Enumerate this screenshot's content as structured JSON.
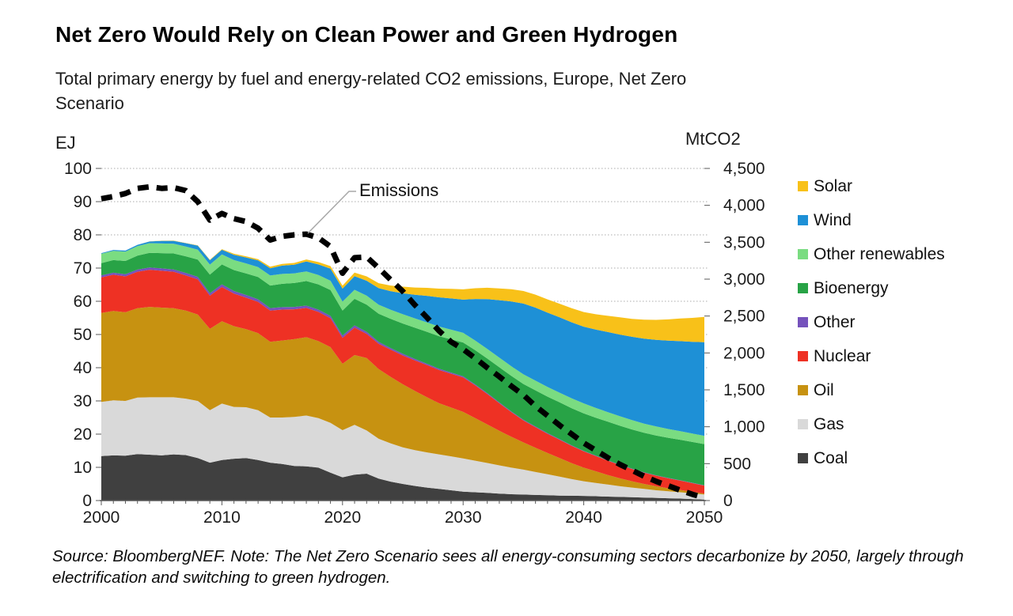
{
  "header": {
    "title": "Net Zero Would Rely on Clean Power and Green Hydrogen",
    "subtitle": "Total primary energy by fuel and energy-related CO2 emissions, Europe, Net Zero Scenario"
  },
  "footer": {
    "source_note": "Source: BloombergNEF. Note: The Net Zero Scenario sees all energy-consuming sectors decarbonize by 2050, largely through electrification and switching to green hydrogen."
  },
  "chart_data": {
    "type": "area",
    "stacked": true,
    "grid": "horizontal-dotted",
    "x_axis": {
      "min": 2000,
      "max": 2050,
      "tick_labels": [
        "2000",
        "2010",
        "2020",
        "2030",
        "2040",
        "2050"
      ],
      "minor_tick_interval": 1
    },
    "y_left": {
      "label": "EJ",
      "min": 0,
      "max": 100,
      "interval": 10,
      "tick_labels": [
        "0",
        "10",
        "20",
        "30",
        "40",
        "50",
        "60",
        "70",
        "80",
        "90",
        "100"
      ]
    },
    "y_right": {
      "label": "MtCO2",
      "min": 0,
      "max": 4500,
      "interval": 500,
      "tick_labels": [
        "0",
        "500",
        "1,000",
        "1,500",
        "2,000",
        "2,500",
        "3,000",
        "3,500",
        "4,000",
        "4,500"
      ]
    },
    "series": [
      {
        "name": "Coal",
        "color": "#404040",
        "values": [
          13.4,
          13.6,
          13.5,
          14.0,
          13.8,
          13.6,
          13.9,
          13.7,
          12.8,
          11.4,
          12.2,
          12.6,
          12.8,
          12.2,
          11.4,
          11.0,
          10.4,
          10.3,
          9.9,
          8.4,
          7.0,
          7.8,
          8.1,
          6.6,
          5.7,
          5.0,
          4.4,
          3.9,
          3.5,
          3.1,
          2.7,
          2.5,
          2.3,
          2.1,
          1.9,
          1.8,
          1.7,
          1.6,
          1.5,
          1.45,
          1.4,
          1.3,
          1.2,
          1.1,
          1.0,
          0.9,
          0.8,
          0.7,
          0.6,
          0.45,
          0.3
        ]
      },
      {
        "name": "Gas",
        "color": "#D9D9D9",
        "values": [
          16.3,
          16.6,
          16.5,
          17.0,
          17.3,
          17.5,
          17.2,
          17.0,
          17.2,
          15.8,
          17.0,
          15.6,
          15.3,
          15.0,
          13.6,
          14.0,
          14.8,
          15.3,
          14.9,
          15.0,
          14.2,
          15.0,
          13.0,
          12.0,
          11.5,
          11.0,
          10.8,
          10.6,
          10.4,
          10.2,
          10.0,
          9.5,
          9.0,
          8.5,
          8.0,
          7.5,
          6.9,
          6.3,
          5.7,
          5.0,
          4.4,
          4.0,
          3.6,
          3.2,
          2.9,
          2.6,
          2.3,
          2.1,
          1.9,
          1.7,
          1.5
        ]
      },
      {
        "name": "Oil",
        "color": "#C79211",
        "values": [
          26.8,
          26.9,
          26.7,
          26.9,
          27.2,
          27.0,
          26.8,
          26.5,
          26.0,
          24.5,
          24.8,
          24.3,
          23.5,
          23.2,
          22.8,
          23.2,
          23.4,
          23.6,
          23.2,
          22.8,
          20.0,
          21.0,
          21.8,
          21.0,
          20.0,
          19.0,
          17.8,
          16.6,
          15.4,
          14.7,
          14.0,
          12.8,
          11.6,
          10.4,
          9.3,
          8.2,
          7.3,
          6.4,
          5.6,
          4.8,
          4.1,
          3.5,
          2.9,
          2.4,
          1.9,
          1.5,
          1.2,
          0.9,
          0.7,
          0.5,
          0.3
        ]
      },
      {
        "name": "Nuclear",
        "color": "#EE3124",
        "values": [
          10.7,
          10.9,
          10.8,
          11.0,
          11.2,
          11.1,
          11.0,
          10.6,
          10.6,
          10.0,
          10.3,
          9.8,
          9.5,
          9.4,
          9.4,
          9.3,
          9.0,
          8.8,
          8.8,
          8.7,
          7.8,
          8.3,
          7.3,
          7.6,
          8.2,
          8.7,
          9.2,
          9.7,
          10.0,
          10.2,
          10.4,
          9.9,
          9.2,
          8.3,
          7.4,
          6.6,
          6.2,
          5.8,
          5.5,
          5.2,
          4.9,
          4.6,
          4.3,
          4.0,
          3.7,
          3.4,
          3.2,
          3.0,
          2.8,
          2.6,
          2.4
        ]
      },
      {
        "name": "Other",
        "color": "#7552BC",
        "values": [
          0.6,
          0.6,
          0.65,
          0.65,
          0.7,
          0.7,
          0.7,
          0.75,
          0.75,
          0.75,
          0.8,
          0.8,
          0.8,
          0.8,
          0.75,
          0.75,
          0.7,
          0.7,
          0.7,
          0.7,
          0.7,
          0.65,
          0.6,
          0.55,
          0.5,
          0.5,
          0.45,
          0.4,
          0.4,
          0.35,
          0.3,
          0.28,
          0.26,
          0.24,
          0.22,
          0.2,
          0.19,
          0.18,
          0.17,
          0.16,
          0.15,
          0.14,
          0.13,
          0.12,
          0.11,
          0.1,
          0.1,
          0.1,
          0.1,
          0.1,
          0.1
        ]
      },
      {
        "name": "Bioenergy",
        "color": "#28A346",
        "values": [
          3.7,
          3.8,
          4.0,
          4.2,
          4.4,
          4.6,
          4.8,
          5.0,
          5.2,
          5.6,
          6.0,
          6.3,
          6.5,
          6.7,
          6.8,
          7.0,
          7.2,
          7.4,
          7.6,
          7.8,
          7.5,
          8.0,
          8.2,
          8.5,
          8.8,
          9.1,
          9.4,
          9.6,
          9.8,
          10.0,
          10.2,
          10.3,
          10.4,
          10.6,
          10.7,
          10.8,
          10.9,
          11.0,
          11.1,
          11.2,
          11.3,
          11.4,
          11.6,
          11.7,
          11.8,
          11.9,
          12.0,
          12.1,
          12.2,
          12.3,
          12.4
        ]
      },
      {
        "name": "Other renewables",
        "color": "#7ADC81",
        "values": [
          2.8,
          2.8,
          2.8,
          2.85,
          2.9,
          2.9,
          2.9,
          2.95,
          3.0,
          3.0,
          3.0,
          3.0,
          3.0,
          3.0,
          3.0,
          3.0,
          2.9,
          2.9,
          2.8,
          2.8,
          2.7,
          2.7,
          2.7,
          2.7,
          2.75,
          2.8,
          2.8,
          2.85,
          2.9,
          2.9,
          2.9,
          2.9,
          2.9,
          2.9,
          2.9,
          2.9,
          2.9,
          2.9,
          2.9,
          2.95,
          3.0,
          2.95,
          2.9,
          2.85,
          2.8,
          2.75,
          2.7,
          2.65,
          2.6,
          2.55,
          2.5
        ]
      },
      {
        "name": "Wind",
        "color": "#1E90D6",
        "values": [
          0.2,
          0.25,
          0.3,
          0.4,
          0.5,
          0.8,
          0.9,
          1.0,
          1.2,
          1.3,
          1.4,
          1.6,
          1.8,
          2.0,
          2.2,
          2.5,
          2.6,
          3.0,
          3.2,
          3.6,
          3.9,
          4.1,
          4.5,
          5.0,
          5.6,
          6.3,
          7.1,
          8.0,
          8.8,
          9.4,
          10.0,
          12.5,
          15.0,
          17.3,
          19.5,
          21.3,
          22.0,
          22.4,
          22.7,
          22.9,
          23.1,
          23.6,
          24.1,
          24.6,
          25.1,
          25.6,
          26.1,
          26.6,
          27.1,
          27.6,
          28.2
        ]
      },
      {
        "name": "Solar",
        "color": "#F8C119",
        "values": [
          0,
          0,
          0,
          0,
          0.02,
          0.03,
          0.05,
          0.08,
          0.1,
          0.15,
          0.2,
          0.3,
          0.35,
          0.4,
          0.45,
          0.5,
          0.55,
          0.6,
          0.7,
          0.8,
          0.9,
          1.1,
          1.3,
          1.5,
          1.7,
          2.0,
          2.2,
          2.4,
          2.6,
          2.9,
          3.1,
          3.25,
          3.4,
          3.55,
          3.7,
          3.8,
          3.9,
          4.0,
          4.1,
          4.25,
          4.4,
          4.6,
          4.9,
          5.2,
          5.4,
          5.7,
          6.0,
          6.4,
          6.8,
          7.2,
          7.6
        ]
      }
    ],
    "line_series": {
      "name": "Emissions",
      "axis": "right",
      "style": "dashed",
      "color": "#000000",
      "values": [
        4090,
        4120,
        4160,
        4230,
        4250,
        4230,
        4240,
        4200,
        4050,
        3800,
        3890,
        3820,
        3780,
        3690,
        3530,
        3580,
        3600,
        3610,
        3560,
        3440,
        3080,
        3290,
        3300,
        3150,
        2990,
        2835,
        2650,
        2480,
        2300,
        2150,
        2050,
        1930,
        1800,
        1680,
        1550,
        1430,
        1280,
        1150,
        1020,
        900,
        780,
        680,
        580,
        490,
        410,
        330,
        260,
        200,
        140,
        85,
        40
      ]
    }
  }
}
